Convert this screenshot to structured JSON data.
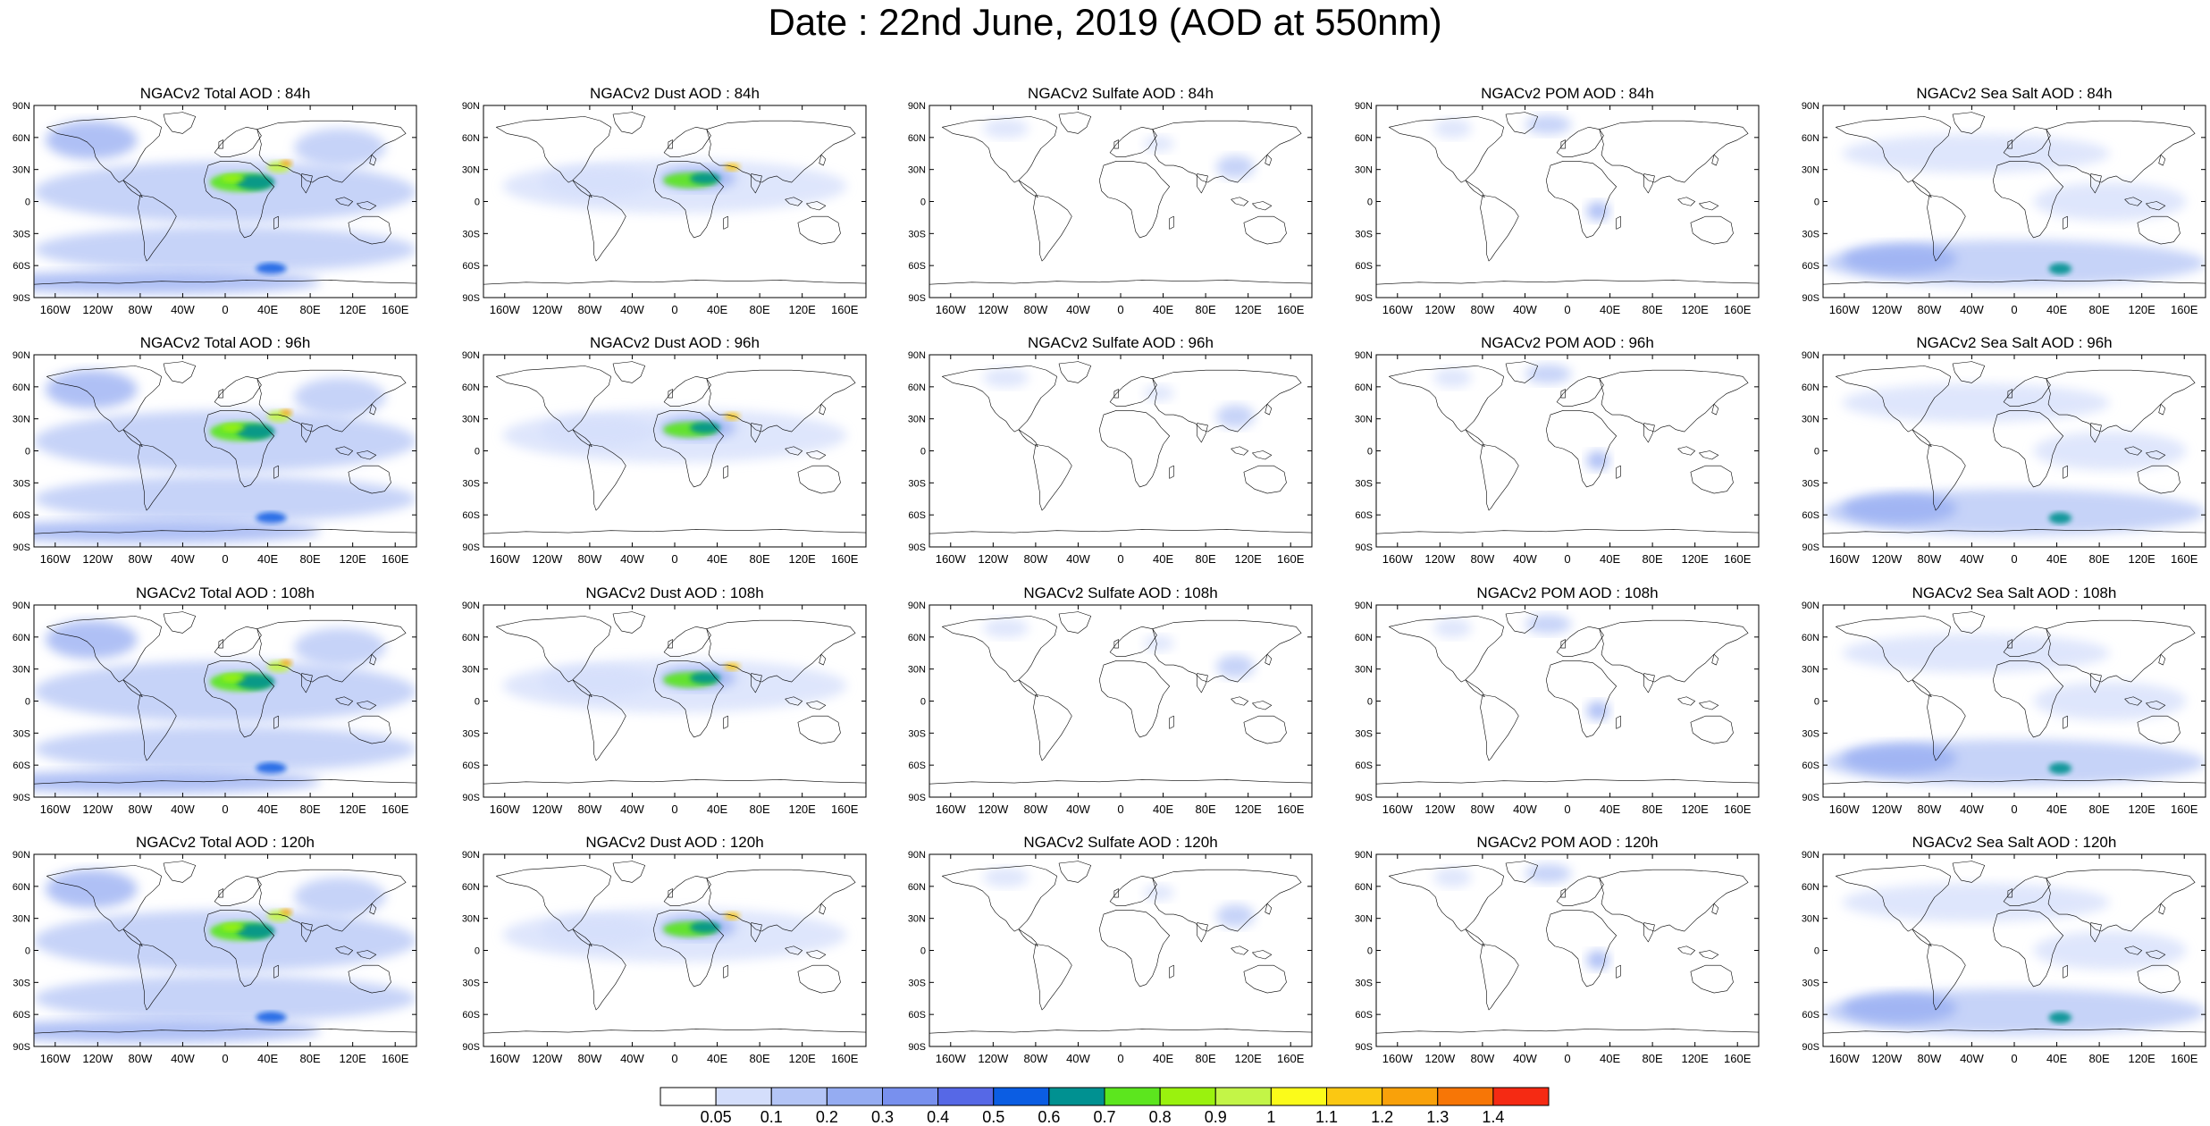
{
  "title": "Date : 22nd June, 2019 (AOD at 550nm)",
  "rows": [
    [
      "NGACv2 Total AOD : 84h",
      "NGACv2 Dust AOD : 84h",
      "NGACv2 Sulfate AOD : 84h",
      "NGACv2 POM AOD : 84h",
      "NGACv2 Sea Salt AOD : 84h"
    ],
    [
      "NGACv2 Total AOD : 96h",
      "NGACv2 Dust AOD : 96h",
      "NGACv2 Sulfate AOD : 96h",
      "NGACv2 POM AOD : 96h",
      "NGACv2 Sea Salt AOD : 96h"
    ],
    [
      "NGACv2 Total AOD : 108h",
      "NGACv2 Dust AOD : 108h",
      "NGACv2 Sulfate AOD : 108h",
      "NGACv2 POM AOD : 108h",
      "NGACv2 Sea Salt AOD : 108h"
    ],
    [
      "NGACv2 Total AOD : 120h",
      "NGACv2 Dust AOD : 120h",
      "NGACv2 Sulfate AOD : 120h",
      "NGACv2 POM AOD : 120h",
      "NGACv2 Sea Salt  AOD : 120h"
    ]
  ],
  "lat_labels": [
    "90N",
    "60N",
    "30N",
    "0",
    "30S",
    "60S",
    "90S"
  ],
  "lon_labels": [
    "160W",
    "120W",
    "80W",
    "40W",
    "0",
    "40E",
    "80E",
    "120E",
    "160E"
  ],
  "lon_values": [
    -160,
    -120,
    -80,
    -40,
    0,
    40,
    80,
    120,
    160
  ],
  "lat_values": [
    90,
    60,
    30,
    0,
    -30,
    -60,
    -90
  ],
  "colorbar": {
    "labels": [
      "0.05",
      "0.1",
      "0.2",
      "0.3",
      "0.4",
      "0.5",
      "0.6",
      "0.7",
      "0.8",
      "0.9",
      "1",
      "1.1",
      "1.2",
      "1.3",
      "1.4"
    ],
    "colors": [
      "#ffffff",
      "#d4defb",
      "#b4c5f6",
      "#95acf2",
      "#7890ee",
      "#5668e6",
      "#0b5de3",
      "#009191",
      "#5ce61e",
      "#9af20e",
      "#c3f547",
      "#fbfb1a",
      "#fbc812",
      "#f9a10a",
      "#f77606",
      "#f52a13"
    ]
  },
  "panel_types": [
    "total",
    "dust",
    "sulfate",
    "pom",
    "seasalt"
  ]
}
